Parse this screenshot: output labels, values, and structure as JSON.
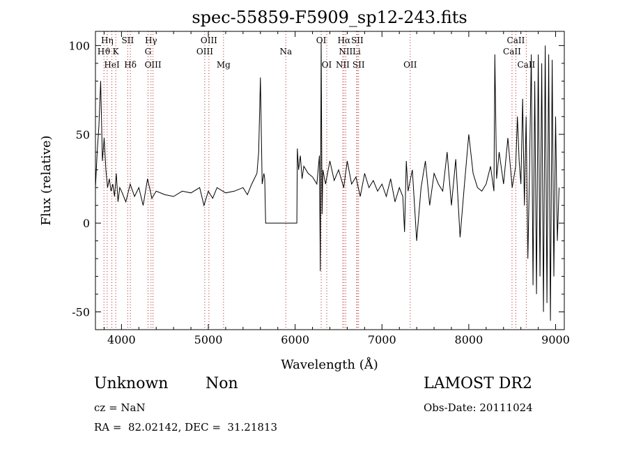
{
  "chart_data": {
    "type": "line",
    "title": "spec-55859-F5909_sp12-243.fits",
    "xlabel": "Wavelength (Å)",
    "ylabel": "Flux (relative)",
    "xlim": [
      3700,
      9100
    ],
    "ylim": [
      -60,
      108
    ],
    "xticks": [
      4000,
      5000,
      6000,
      7000,
      8000,
      9000
    ],
    "yticks": [
      -50,
      0,
      50,
      100
    ],
    "line_color": "#000000",
    "marker_color": "#b22222",
    "marker_style": "dotted",
    "series": [
      {
        "x": [
          3700,
          3720,
          3740,
          3760,
          3780,
          3800,
          3820,
          3840,
          3860,
          3880,
          3900,
          3920,
          3940,
          3960,
          3980,
          4000,
          4050,
          4100,
          4150,
          4200,
          4250,
          4300,
          4350,
          4400,
          4500,
          4600,
          4700,
          4800,
          4900,
          4950,
          5000,
          5050,
          5100,
          5200,
          5300,
          5400,
          5450,
          5500,
          5540,
          5560,
          5580,
          5600,
          5620,
          5640,
          5650,
          5660,
          6020,
          6025,
          6040,
          6060,
          6080,
          6100,
          6150,
          6200,
          6250,
          6280,
          6290,
          6300,
          6310,
          6320,
          6350,
          6400,
          6450,
          6500,
          6560,
          6600,
          6650,
          6700,
          6750,
          6800,
          6850,
          6900,
          6950,
          7000,
          7050,
          7100,
          7150,
          7200,
          7240,
          7260,
          7280,
          7300,
          7350,
          7400,
          7450,
          7500,
          7550,
          7600,
          7650,
          7700,
          7750,
          7800,
          7850,
          7900,
          7950,
          8000,
          8050,
          8100,
          8150,
          8200,
          8250,
          8290,
          8300,
          8320,
          8350,
          8400,
          8450,
          8500,
          8540,
          8560,
          8580,
          8600,
          8620,
          8640,
          8660,
          8680,
          8700,
          8720,
          8740,
          8760,
          8780,
          8800,
          8820,
          8840,
          8860,
          8880,
          8900,
          8920,
          8940,
          8960,
          8980,
          9000,
          9020,
          9040
        ],
        "y": [
          20,
          40,
          55,
          80,
          35,
          48,
          30,
          20,
          25,
          18,
          22,
          15,
          28,
          12,
          20,
          18,
          12,
          22,
          15,
          20,
          10,
          25,
          14,
          18,
          16,
          15,
          18,
          17,
          20,
          10,
          18,
          14,
          20,
          17,
          18,
          20,
          16,
          22,
          26,
          28,
          40,
          82,
          22,
          28,
          25,
          0,
          0,
          42,
          30,
          38,
          25,
          32,
          28,
          26,
          22,
          38,
          -27,
          102,
          5,
          30,
          22,
          35,
          24,
          30,
          20,
          35,
          22,
          26,
          15,
          28,
          20,
          24,
          18,
          22,
          15,
          25,
          12,
          20,
          15,
          -5,
          35,
          18,
          30,
          -10,
          20,
          35,
          10,
          28,
          22,
          18,
          40,
          10,
          36,
          -8,
          22,
          50,
          28,
          20,
          18,
          22,
          32,
          18,
          95,
          25,
          40,
          22,
          48,
          20,
          32,
          60,
          35,
          22,
          70,
          10,
          60,
          -20,
          30,
          95,
          -35,
          80,
          -40,
          95,
          -30,
          90,
          -50,
          100,
          -45,
          95,
          -55,
          92,
          -30,
          60,
          -10,
          20
        ]
      }
    ],
    "line_markers": [
      {
        "label": "Hη",
        "x": 3835,
        "row": 0
      },
      {
        "label": "Hϑ",
        "x": 3798,
        "row": 1
      },
      {
        "label": "K",
        "x": 3934,
        "row": 1
      },
      {
        "label": "HeI",
        "x": 3889,
        "row": 2
      },
      {
        "label": "SII",
        "x": 4072,
        "row": 0
      },
      {
        "label": "Hδ",
        "x": 4102,
        "row": 2
      },
      {
        "label": "Hγ",
        "x": 4340,
        "row": 0
      },
      {
        "label": "G",
        "x": 4305,
        "row": 1
      },
      {
        "label": "OIII",
        "x": 4363,
        "row": 2
      },
      {
        "label": "OIII",
        "x": 5007,
        "row": 0
      },
      {
        "label": "OIII",
        "x": 4959,
        "row": 1
      },
      {
        "label": "Mg",
        "x": 5175,
        "row": 2
      },
      {
        "label": "Na",
        "x": 5893,
        "row": 1
      },
      {
        "label": "OI",
        "x": 6300,
        "row": 0
      },
      {
        "label": "OI",
        "x": 6364,
        "row": 2
      },
      {
        "label": "Hα",
        "x": 6563,
        "row": 0
      },
      {
        "label": "SII",
        "x": 6716,
        "row": 0
      },
      {
        "label": "NII",
        "x": 6583,
        "row": 1
      },
      {
        "label": "Li",
        "x": 6708,
        "row": 1
      },
      {
        "label": "NII",
        "x": 6548,
        "row": 2
      },
      {
        "label": "SII",
        "x": 6731,
        "row": 2
      },
      {
        "label": "OII",
        "x": 7325,
        "row": 2
      },
      {
        "label": "CaII",
        "x": 8542,
        "row": 0
      },
      {
        "label": "CaII",
        "x": 8498,
        "row": 1
      },
      {
        "label": "CaII",
        "x": 8662,
        "row": 2
      }
    ]
  },
  "info": {
    "class": "Unknown",
    "subclass": "Non",
    "survey": "LAMOST DR2",
    "cz": "cz = NaN",
    "obs_date": "Obs-Date: 20111024",
    "coords": "RA =  82.02142, DEC =  31.21813"
  }
}
